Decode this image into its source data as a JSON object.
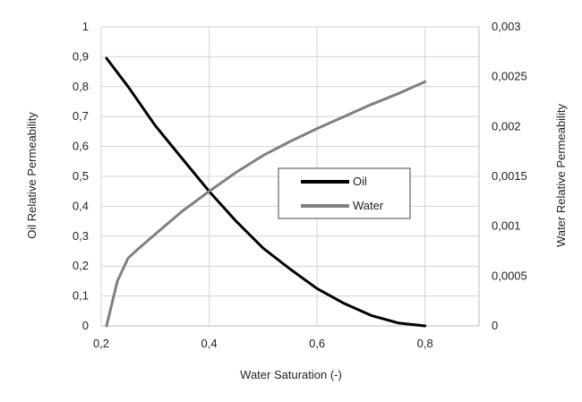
{
  "chart_data": {
    "type": "line",
    "xlabel": "Water Saturation (-)",
    "ylabel": "Oil Relative Permeability",
    "y2label": "Water Relative Permeability",
    "xlim": [
      0.2,
      0.9
    ],
    "ylim": [
      0,
      1
    ],
    "y2lim": [
      0,
      0.003
    ],
    "grid": true,
    "legend_position": "center-right",
    "x_ticks": [
      "0,2",
      "0,4",
      "0,6",
      "0,8"
    ],
    "y_ticks": [
      "0",
      "0,1",
      "0,2",
      "0,3",
      "0,4",
      "0,5",
      "0,6",
      "0,7",
      "0,8",
      "0,9",
      "1"
    ],
    "y2_ticks": [
      "0",
      "0,0005",
      "0,001",
      "0,0015",
      "0,002",
      "0,0025",
      "0,003"
    ],
    "series": [
      {
        "name": "Oil",
        "axis": "left",
        "color": "#000000",
        "x": [
          0.21,
          0.25,
          0.3,
          0.35,
          0.4,
          0.45,
          0.5,
          0.55,
          0.6,
          0.65,
          0.7,
          0.75,
          0.8
        ],
        "y": [
          0.895,
          0.8,
          0.67,
          0.56,
          0.45,
          0.35,
          0.26,
          0.19,
          0.125,
          0.075,
          0.035,
          0.01,
          0.0
        ]
      },
      {
        "name": "Water",
        "axis": "right",
        "color": "#808080",
        "x": [
          0.21,
          0.23,
          0.25,
          0.27,
          0.3,
          0.35,
          0.4,
          0.45,
          0.5,
          0.55,
          0.6,
          0.65,
          0.7,
          0.75,
          0.8
        ],
        "y": [
          0.0,
          0.00045,
          0.00068,
          0.00078,
          0.00092,
          0.00115,
          0.00135,
          0.00154,
          0.00171,
          0.00185,
          0.00198,
          0.0021,
          0.00222,
          0.00233,
          0.00245
        ]
      }
    ]
  }
}
